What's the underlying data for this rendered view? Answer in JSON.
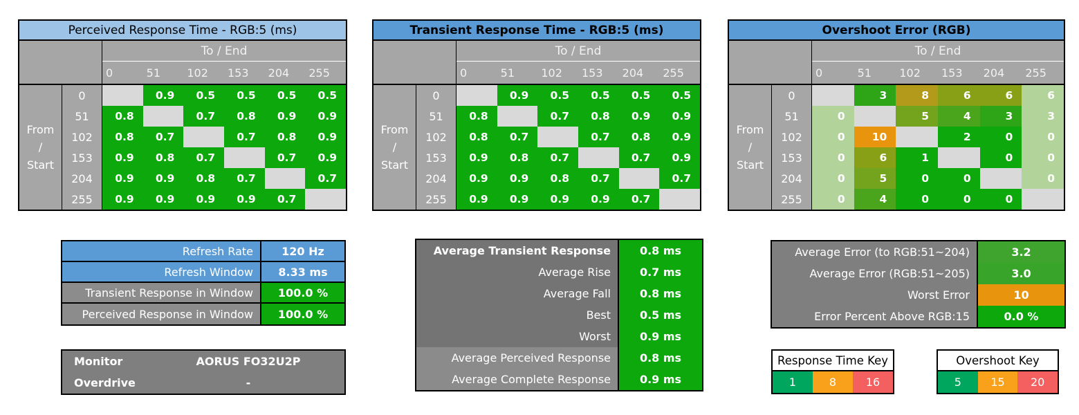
{
  "palette": {
    "table_green": "#0CA80C",
    "pale_green": "#B2D49A",
    "diag_gray": "#D9D9D9",
    "header_gray": "#A6A6A6",
    "light_blue": "#9DC3E6",
    "medium_blue": "#5B9BD5",
    "key_green": "#00A65D",
    "key_orange": "#F9A11B",
    "key_red": "#F45F5F"
  },
  "chart_data": [
    {
      "type": "heatmap",
      "title": "Perceived Response Time - RGB:5 (ms)",
      "title_bg": "#9DC3E6",
      "x_label": "To / End",
      "y_label": "From\n/\nStart",
      "x": [
        "0",
        "51",
        "102",
        "153",
        "204",
        "255"
      ],
      "y": [
        "0",
        "51",
        "102",
        "153",
        "204",
        "255"
      ],
      "unit": "ms",
      "values": [
        [
          null,
          "0.9",
          "0.5",
          "0.5",
          "0.5",
          "0.5"
        ],
        [
          "0.8",
          null,
          "0.7",
          "0.8",
          "0.9",
          "0.9"
        ],
        [
          "0.8",
          "0.7",
          null,
          "0.7",
          "0.8",
          "0.9"
        ],
        [
          "0.9",
          "0.8",
          "0.7",
          null,
          "0.7",
          "0.9"
        ],
        [
          "0.9",
          "0.9",
          "0.8",
          "0.7",
          null,
          "0.7"
        ],
        [
          "0.9",
          "0.9",
          "0.9",
          "0.9",
          "0.7",
          null
        ]
      ]
    },
    {
      "type": "heatmap",
      "title": "Transient Response Time - RGB:5 (ms)",
      "title_bg": "#5B9BD5",
      "x_label": "To / End",
      "y_label": "From\n/\nStart",
      "x": [
        "0",
        "51",
        "102",
        "153",
        "204",
        "255"
      ],
      "y": [
        "0",
        "51",
        "102",
        "153",
        "204",
        "255"
      ],
      "unit": "ms",
      "values": [
        [
          null,
          "0.9",
          "0.5",
          "0.5",
          "0.5",
          "0.5"
        ],
        [
          "0.8",
          null,
          "0.7",
          "0.8",
          "0.9",
          "0.9"
        ],
        [
          "0.8",
          "0.7",
          null,
          "0.7",
          "0.8",
          "0.9"
        ],
        [
          "0.9",
          "0.8",
          "0.7",
          null,
          "0.7",
          "0.9"
        ],
        [
          "0.9",
          "0.9",
          "0.8",
          "0.7",
          null,
          "0.7"
        ],
        [
          "0.9",
          "0.9",
          "0.9",
          "0.9",
          "0.7",
          null
        ]
      ]
    },
    {
      "type": "heatmap",
      "title": "Overshoot Error (RGB)",
      "title_bg": "#5B9BD5",
      "x_label": "To / End",
      "y_label": "From\n/\nStart",
      "x": [
        "0",
        "51",
        "102",
        "153",
        "204",
        "255"
      ],
      "y": [
        "0",
        "51",
        "102",
        "153",
        "204",
        "255"
      ],
      "unit": "RGB",
      "values": [
        [
          null,
          "3",
          "8",
          "6",
          "6",
          "6"
        ],
        [
          "0",
          null,
          "5",
          "4",
          "3",
          "3"
        ],
        [
          "0",
          "10",
          null,
          "2",
          "0",
          "0"
        ],
        [
          "0",
          "6",
          "1",
          null,
          "0",
          "0"
        ],
        [
          "0",
          "5",
          "0",
          "0",
          null,
          "0"
        ],
        [
          "0",
          "4",
          "0",
          "0",
          "0",
          null
        ]
      ],
      "cell_colors": [
        [
          "",
          "#2DA517",
          "#B39A1A",
          "#87A016",
          "#87A016",
          "#B2D49A"
        ],
        [
          "#B2D49A",
          "",
          "#74A31D",
          "#4AA41C",
          "#2DA517",
          "#B2D49A"
        ],
        [
          "#B2D49A",
          "#E8940C",
          "",
          "#0CA80C",
          "#0CA80C",
          "#B2D49A"
        ],
        [
          "#B2D49A",
          "#87A016",
          "#0CA80C",
          "",
          "#0CA80C",
          "#B2D49A"
        ],
        [
          "#B2D49A",
          "#74A31D",
          "#0CA80C",
          "#0CA80C",
          "",
          "#B2D49A"
        ],
        [
          "#B2D49A",
          "#4AA41C",
          "#0CA80C",
          "#0CA80C",
          "#0CA80C",
          ""
        ]
      ]
    },
    {
      "type": "table",
      "rows": [
        {
          "label": "Refresh Rate",
          "value": "120 Hz",
          "label_bg": "#5B9BD5",
          "value_bg": "#5B9BD5"
        },
        {
          "label": "Refresh Window",
          "value": "8.33 ms",
          "label_bg": "#5B9BD5",
          "value_bg": "#5B9BD5"
        },
        {
          "label": "Transient Response in Window",
          "value": "100.0 %",
          "label_bg": "#8C8C8C",
          "value_bg": "#0CA80C"
        },
        {
          "label": "Perceived Response in Window",
          "value": "100.0 %",
          "label_bg": "#8C8C8C",
          "value_bg": "#0CA80C"
        }
      ]
    },
    {
      "type": "table",
      "rows": [
        {
          "label": "Monitor",
          "value": "AORUS FO32U2P"
        },
        {
          "label": "Overdrive",
          "value": "-"
        }
      ]
    },
    {
      "type": "table",
      "rows": [
        {
          "label": "Average Transient Response",
          "value": "0.8 ms",
          "label_bg": "#747474",
          "value_bg": "#0CA80C"
        },
        {
          "label": "Average Rise",
          "value": "0.7 ms",
          "label_bg": "#747474",
          "value_bg": "#0CA80C"
        },
        {
          "label": "Average Fall",
          "value": "0.8 ms",
          "label_bg": "#747474",
          "value_bg": "#0CA80C"
        },
        {
          "label": "Best",
          "value": "0.5 ms",
          "label_bg": "#747474",
          "value_bg": "#0CA80C"
        },
        {
          "label": "Worst",
          "value": "0.9 ms",
          "label_bg": "#747474",
          "value_bg": "#0CA80C"
        },
        {
          "label": "Average Perceived Response",
          "value": "0.8 ms",
          "label_bg": "#8B8B8B",
          "value_bg": "#0CA80C"
        },
        {
          "label": "Average Complete Response",
          "value": "0.9 ms",
          "label_bg": "#8B8B8B",
          "value_bg": "#0CA80C"
        }
      ]
    },
    {
      "type": "table",
      "rows": [
        {
          "label": "Average Error (to RGB:51~204)",
          "value": "3.2",
          "label_bg": "#7F7F7F",
          "value_bg": "#3EA42E"
        },
        {
          "label": "Average Error (RGB:51~205)",
          "value": "3.0",
          "label_bg": "#7F7F7F",
          "value_bg": "#38A52A"
        },
        {
          "label": "Worst Error",
          "value": "10",
          "label_bg": "#7F7F7F",
          "value_bg": "#E8940C"
        },
        {
          "label": "Error Percent Above RGB:15",
          "value": "0.0 %",
          "label_bg": "#7F7F7F",
          "value_bg": "#0CA80C"
        }
      ]
    },
    {
      "type": "key",
      "title": "Response Time Key",
      "cells": [
        {
          "label": "1",
          "bg": "#00A65D"
        },
        {
          "label": "8",
          "bg": "#F9A11B"
        },
        {
          "label": "16",
          "bg": "#F45F5F"
        }
      ]
    },
    {
      "type": "key",
      "title": "Overshoot Key",
      "cells": [
        {
          "label": "5",
          "bg": "#00A65D"
        },
        {
          "label": "15",
          "bg": "#F9A11B"
        },
        {
          "label": "20",
          "bg": "#F45F5F"
        }
      ]
    }
  ]
}
